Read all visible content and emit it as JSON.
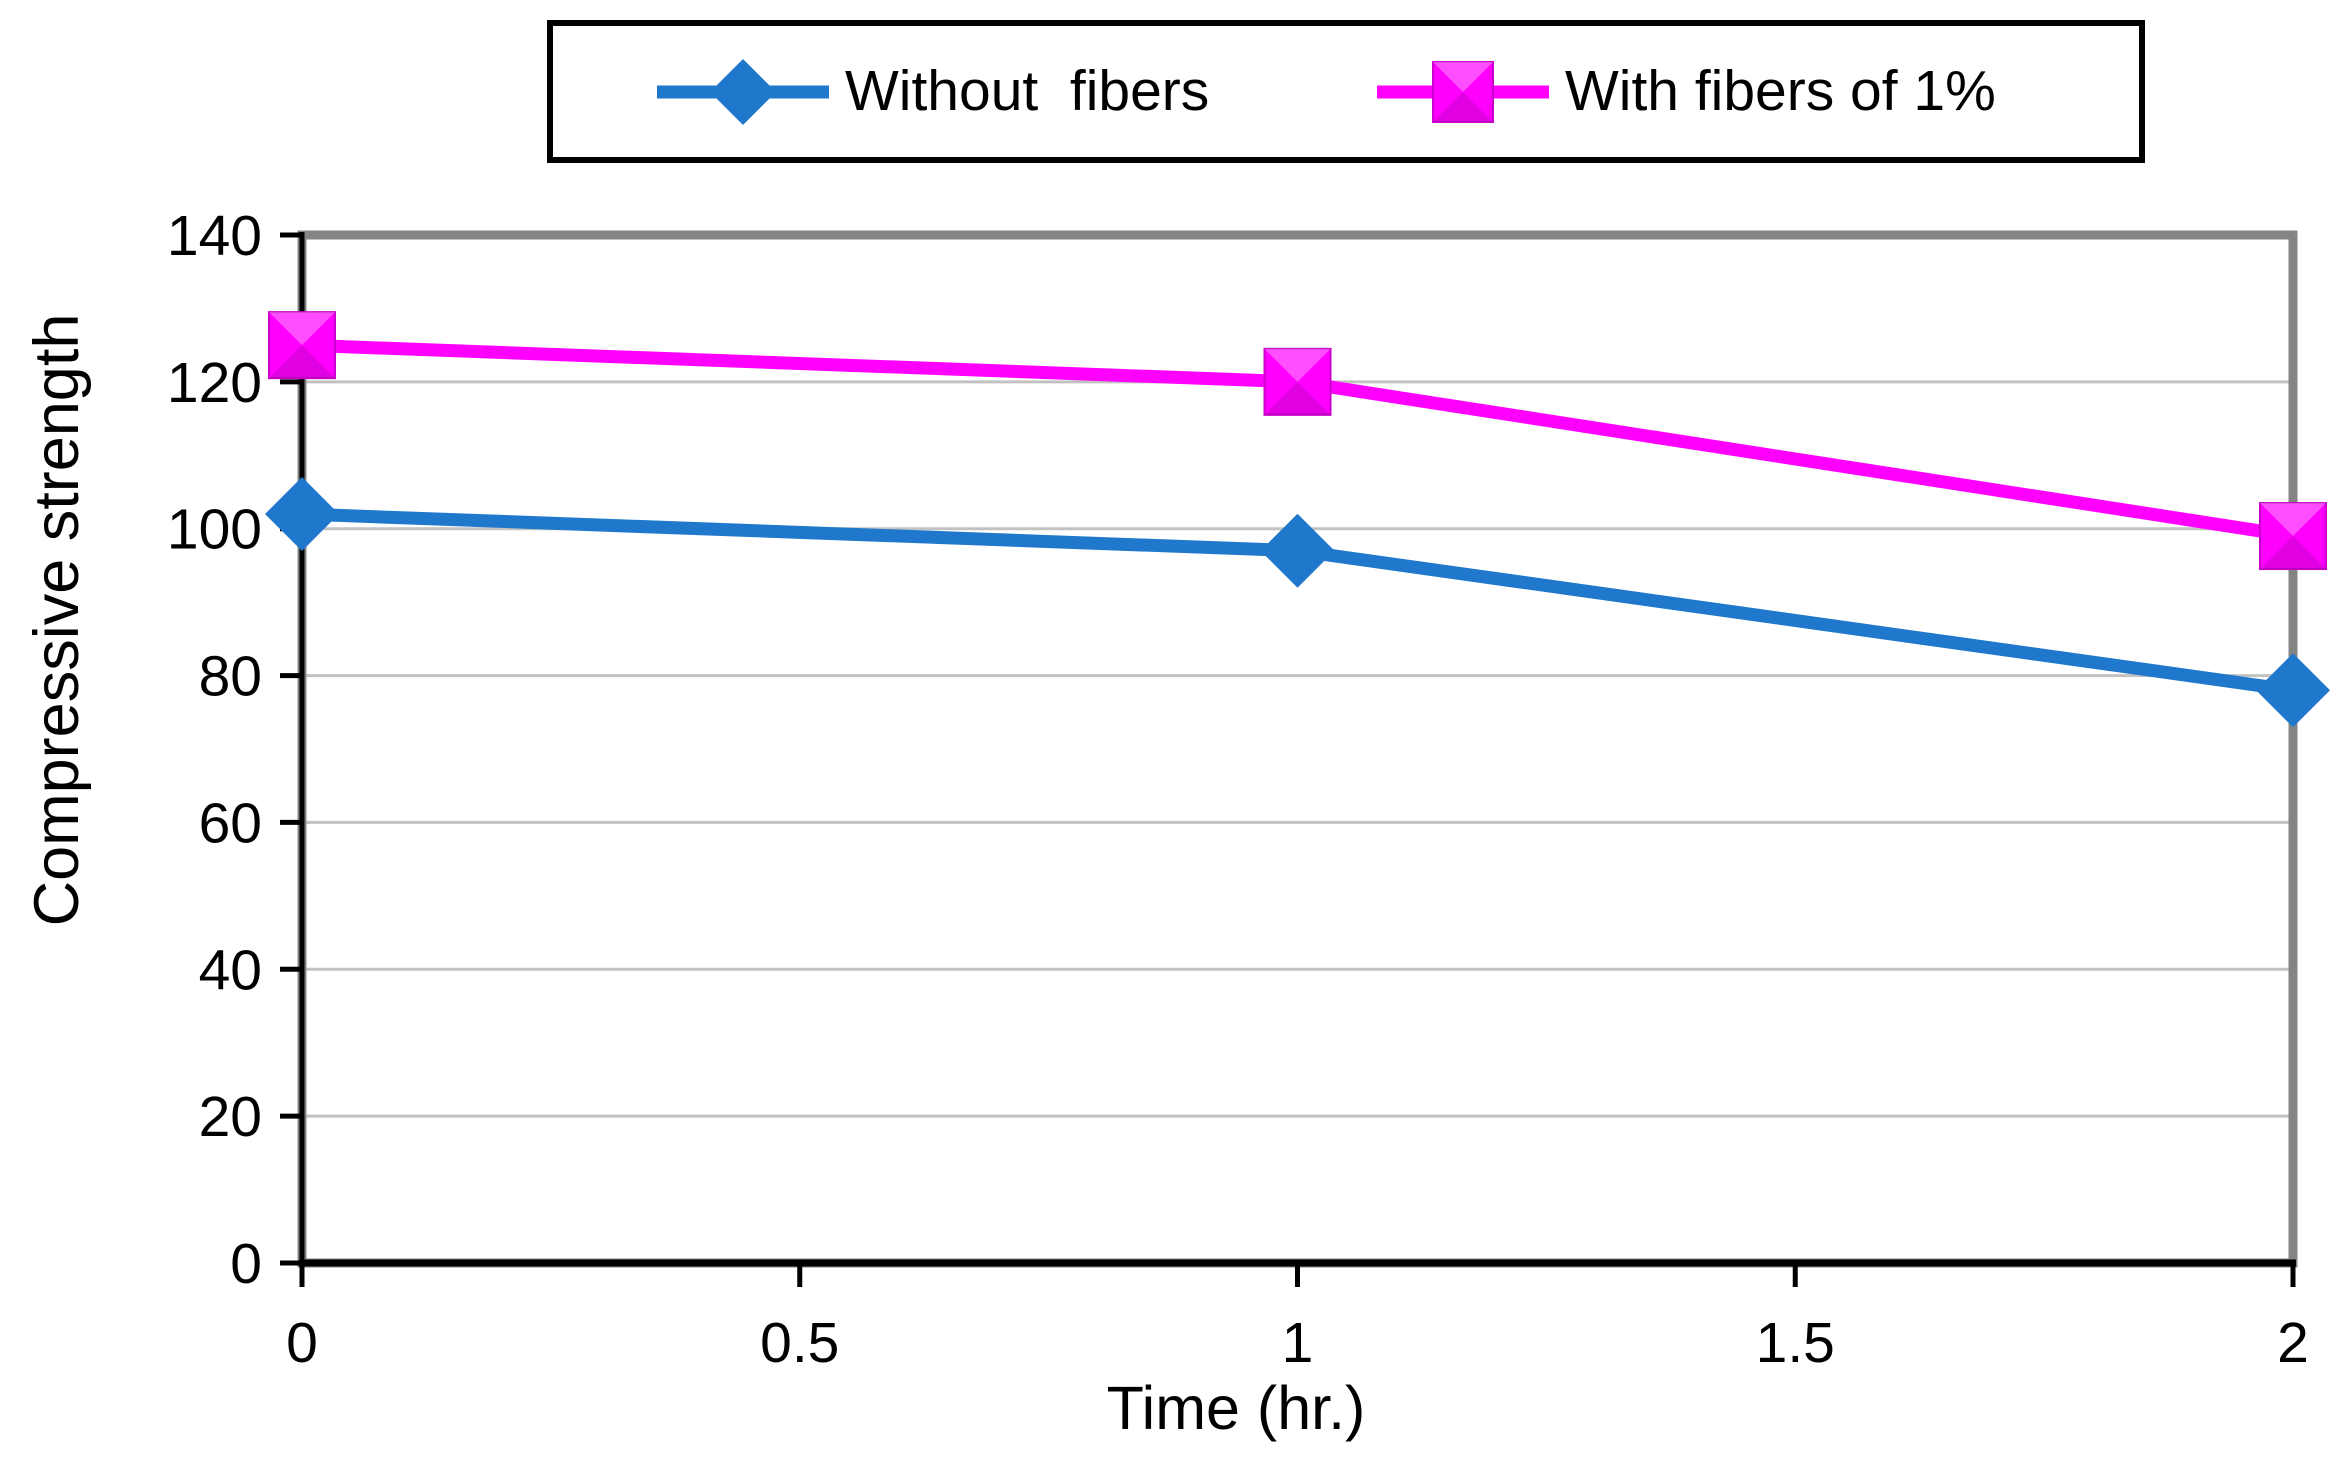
{
  "chart_data": {
    "type": "line",
    "x": [
      0,
      1,
      2
    ],
    "series": [
      {
        "name": "Without  fibers",
        "values": [
          102,
          97,
          78
        ],
        "color": "#1F78CB",
        "marker": "diamond"
      },
      {
        "name": "With fibers of 1%",
        "values": [
          125,
          120,
          99
        ],
        "color": "#FF00FF",
        "marker": "square"
      }
    ],
    "xlabel": "Time (hr.)",
    "ylabel": "Compressive strength",
    "xlim": [
      0,
      2
    ],
    "ylim": [
      0,
      140
    ],
    "x_ticks": [
      {
        "value": 0,
        "label": "0"
      },
      {
        "value": 0.5,
        "label": "0.5"
      },
      {
        "value": 1,
        "label": "1"
      },
      {
        "value": 1.5,
        "label": "1.5"
      },
      {
        "value": 2,
        "label": "2"
      }
    ],
    "y_ticks": [
      {
        "value": 0,
        "label": "0"
      },
      {
        "value": 20,
        "label": "20"
      },
      {
        "value": 40,
        "label": "40"
      },
      {
        "value": 60,
        "label": "60"
      },
      {
        "value": 80,
        "label": "80"
      },
      {
        "value": 100,
        "label": "100"
      },
      {
        "value": 120,
        "label": "120"
      },
      {
        "value": 140,
        "label": "140"
      }
    ],
    "grid": "horizontal",
    "legend_position": "top-center",
    "colors": {
      "gridline": "#C2C2C2",
      "frame": "#848484",
      "axis": "#000000",
      "text": "#000000",
      "background": "#FFFFFF",
      "square_edge": "#CC00CC"
    }
  }
}
